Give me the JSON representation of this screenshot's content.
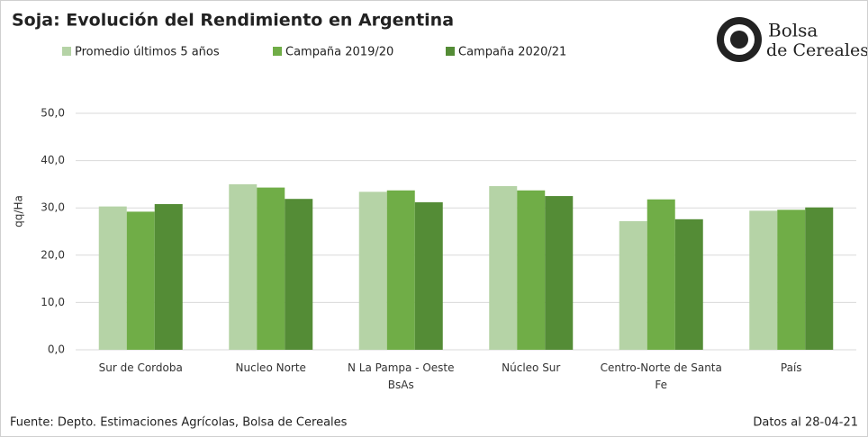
{
  "chart_data": {
    "type": "bar",
    "title": "Soja: Evolución  del Rendimiento  en Argentina",
    "y_label": "qq/Ha",
    "categories": [
      "Sur de Cordoba",
      "Nucleo Norte",
      "N La Pampa - Oeste BsAs",
      "Núcleo Sur",
      "Centro-Norte de Santa Fe",
      "País"
    ],
    "series": [
      {
        "name": "Promedio últimos 5 años",
        "color": "#b5d3a6",
        "values": [
          30.3,
          35.0,
          33.4,
          34.6,
          27.2,
          29.4
        ]
      },
      {
        "name": "Campaña 2019/20",
        "color": "#70ad47",
        "values": [
          29.2,
          34.3,
          33.7,
          33.7,
          31.8,
          29.6
        ]
      },
      {
        "name": "Campaña 2020/21",
        "color": "#548c36",
        "values": [
          30.8,
          31.9,
          31.2,
          32.5,
          27.6,
          30.1
        ]
      }
    ],
    "ylim": [
      0,
      50
    ],
    "yticks": [
      {
        "value": 0,
        "label": "0,0"
      },
      {
        "value": 10,
        "label": "10,0"
      },
      {
        "value": 20,
        "label": "20,0"
      },
      {
        "value": 30,
        "label": "30,0"
      },
      {
        "value": 40,
        "label": "40,0"
      },
      {
        "value": 50,
        "label": "50,0"
      }
    ],
    "grid": true,
    "source": "Fuente: Depto. Estimaciones Agrícolas, Bolsa de Cereales",
    "date_note": "Datos al 28-04-21",
    "logo": [
      "Bolsa",
      "de Cereales"
    ]
  }
}
